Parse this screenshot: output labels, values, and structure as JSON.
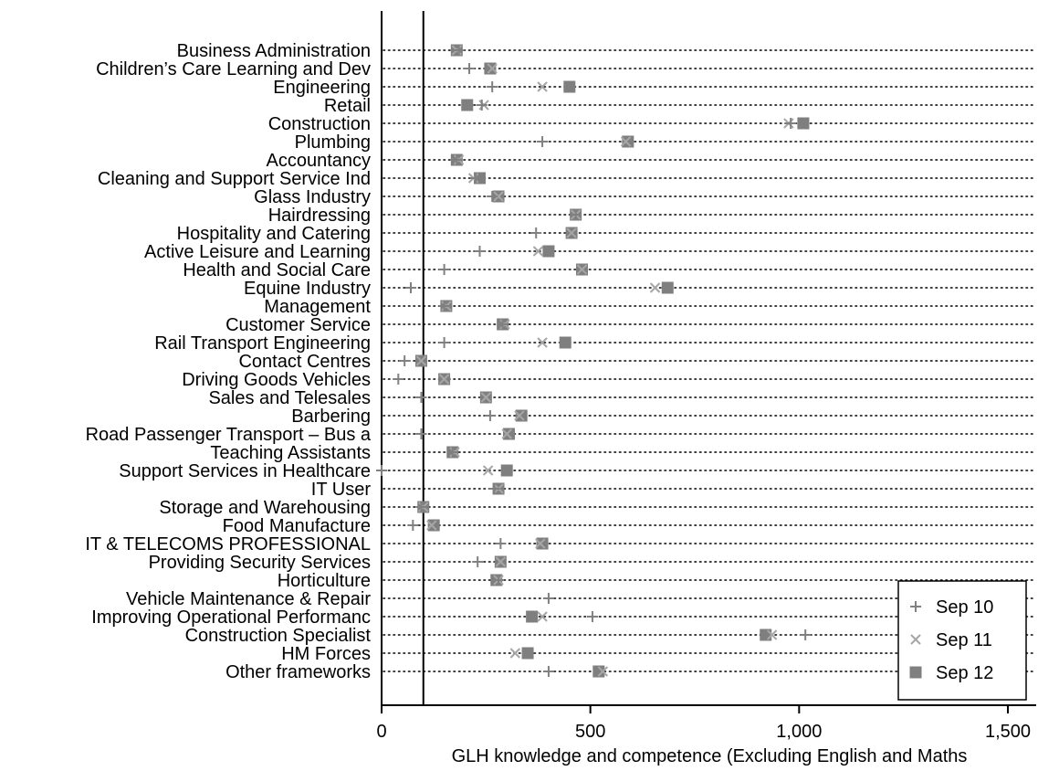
{
  "chart_data": {
    "type": "scatter",
    "orientation": "horizontal-dot-plot",
    "title": "",
    "xlabel": "GLH knowledge and competence (Excluding English and Maths",
    "ylabel": "",
    "xlim": [
      0,
      1550
    ],
    "xticks": [
      0,
      500,
      1000,
      1500
    ],
    "xtick_labels": [
      "0",
      "500",
      "1,000",
      "1,500"
    ],
    "reference_line_x": 100,
    "dotted_row_guides": true,
    "legend_position": "bottom-right",
    "categories": [
      "Business Administration",
      "Children’s Care Learning and Dev",
      "Engineering",
      "Retail",
      "Construction",
      "Plumbing",
      "Accountancy",
      "Cleaning and Support Service Ind",
      "Glass Industry",
      "Hairdressing",
      "Hospitality and Catering",
      "Active Leisure and Learning",
      "Health and Social Care",
      "Equine Industry",
      "Management",
      "Customer Service",
      "Rail Transport Engineering",
      "Contact Centres",
      "Driving Goods Vehicles",
      "Sales and Telesales",
      "Barbering",
      "Road Passenger Transport – Bus a",
      "Teaching Assistants",
      "Support Services in Healthcare",
      "IT User",
      "Storage and Warehousing",
      "Food Manufacture",
      "IT & TELECOMS PROFESSIONAL",
      "Providing Security Services",
      "Horticulture",
      "Vehicle Maintenance & Repair",
      "Improving Operational Performanc",
      "Construction Specialist",
      "HM Forces",
      "Other frameworks"
    ],
    "series": [
      {
        "name": "Sep 10",
        "marker": "plus",
        "color": "#808080",
        "values": [
          185,
          210,
          265,
          240,
          980,
          385,
          180,
          225,
          265,
          465,
          370,
          235,
          150,
          70,
          150,
          290,
          150,
          55,
          40,
          95,
          260,
          95,
          170,
          0,
          270,
          95,
          75,
          285,
          230,
          280,
          400,
          505,
          1015,
          null,
          400
        ]
      },
      {
        "name": "Sep 11",
        "marker": "cross",
        "color": "#a6a6a6",
        "values": [
          180,
          265,
          385,
          245,
          975,
          585,
          185,
          220,
          280,
          465,
          455,
          375,
          480,
          655,
          155,
          295,
          385,
          95,
          150,
          250,
          330,
          300,
          175,
          255,
          280,
          100,
          120,
          380,
          285,
          280,
          null,
          385,
          935,
          320,
          530
        ]
      },
      {
        "name": "Sep 12",
        "marker": "square",
        "color": "#7f7f7f",
        "values": [
          180,
          260,
          450,
          205,
          1010,
          590,
          180,
          235,
          280,
          465,
          455,
          400,
          480,
          685,
          155,
          290,
          440,
          95,
          150,
          250,
          335,
          305,
          170,
          300,
          280,
          100,
          125,
          385,
          285,
          275,
          null,
          360,
          920,
          350,
          520
        ]
      }
    ]
  }
}
